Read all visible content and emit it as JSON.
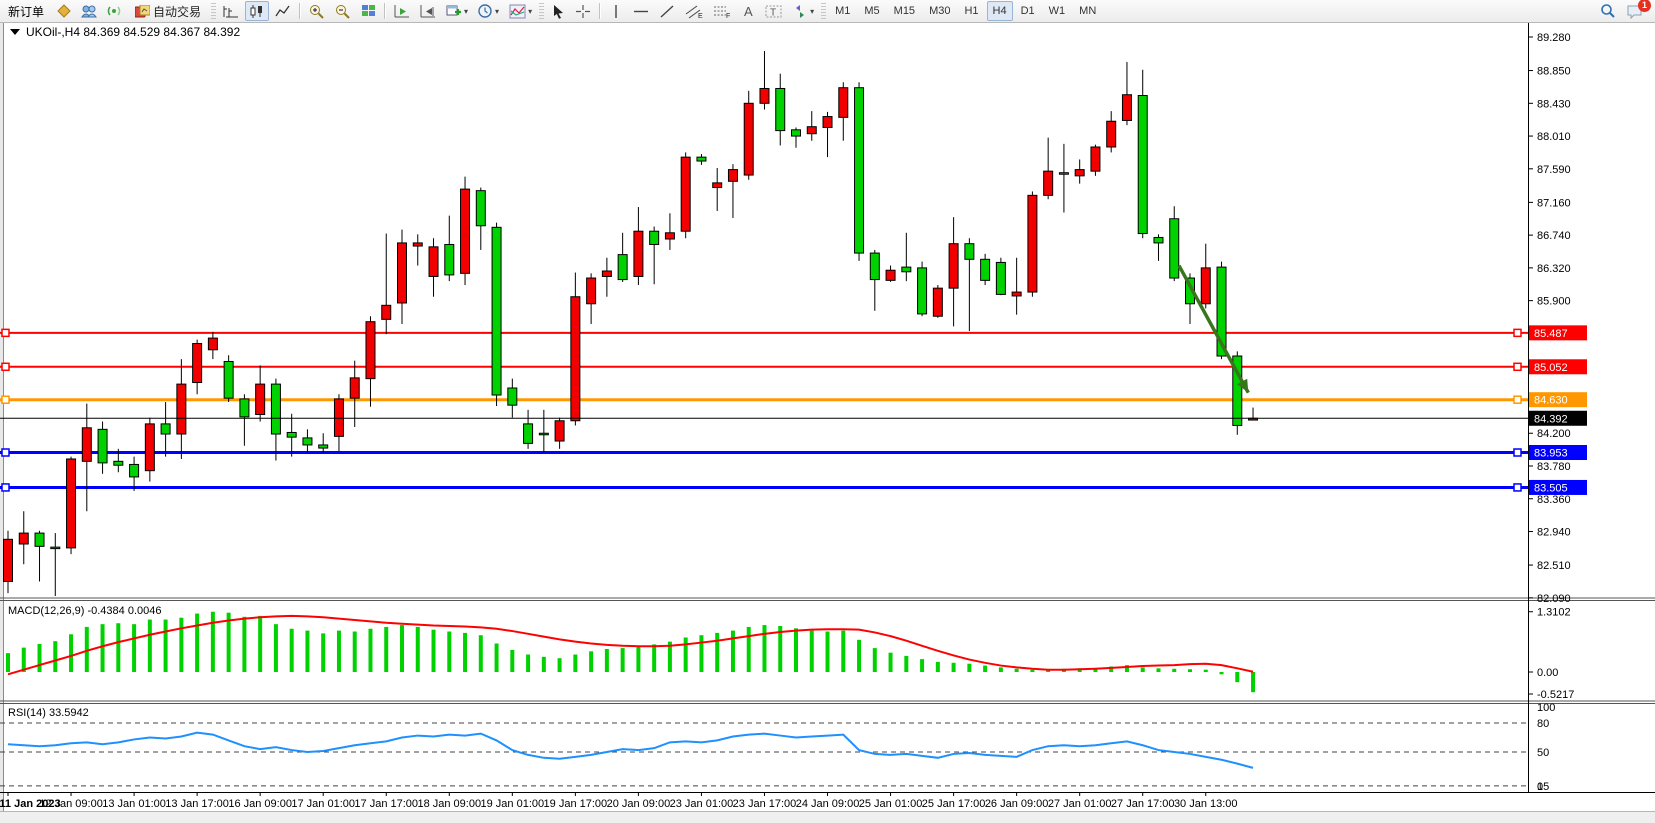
{
  "toolbar": {
    "new_order_label": "新订单",
    "autotrade_label": "自动交易",
    "timeframes": [
      "M1",
      "M5",
      "M15",
      "M30",
      "H1",
      "H4",
      "D1",
      "W1",
      "MN"
    ],
    "active_timeframe": "H4",
    "notification_count": "1",
    "icons": [
      "gold-coin-icon",
      "community-icon",
      "signals-icon",
      "autotrade-icon",
      "bar-chart-icon",
      "candle-chart-icon",
      "line-chart-icon",
      "zoom-in-icon",
      "zoom-out-icon",
      "tile-windows-icon",
      "auto-scroll-icon",
      "chart-shift-icon",
      "new-chart-icon",
      "period-icon",
      "indicators-icon",
      "cursor-icon",
      "crosshair-icon",
      "vertical-line-icon",
      "horizontal-line-icon",
      "trendline-icon",
      "channel-icon",
      "fibonacci-icon",
      "text-icon",
      "label-icon",
      "shapes-icon",
      "search-icon",
      "chat-icon"
    ]
  },
  "chart_data": {
    "type": "candlestick+indicators",
    "title_symbol": "UKOil-,H4",
    "title_ohlc": "84.369 84.529 84.367 84.392",
    "colors": {
      "up": "#f20000",
      "down": "#00d200",
      "macd_hist": "#00d200",
      "macd_signal": "#ff0000",
      "rsi_line": "#1e90ff",
      "line_red": "#ff0000",
      "line_orange": "#ff9800",
      "line_blue": "#0000ff",
      "line_black": "#000000"
    },
    "price_axis_ticks": [
      89.28,
      88.85,
      88.43,
      88.01,
      87.59,
      87.16,
      86.74,
      86.32,
      85.9,
      84.2,
      83.78,
      83.36,
      82.94,
      82.51,
      82.09
    ],
    "y_range": {
      "max": 89.28,
      "min": 82.09
    },
    "hlines": [
      {
        "price": 85.487,
        "color": "#ff0000",
        "width": 2
      },
      {
        "price": 85.052,
        "color": "#ff0000",
        "width": 2
      },
      {
        "price": 84.63,
        "color": "#ff9800",
        "width": 3
      },
      {
        "price": 83.953,
        "color": "#0000ff",
        "width": 3
      },
      {
        "price": 83.505,
        "color": "#0000ff",
        "width": 3
      }
    ],
    "current_price": 84.392,
    "time_labels": [
      "11 Jan 2023",
      "12 Jan 09:00",
      "13 Jan 01:00",
      "13 Jan 17:00",
      "16 Jan 09:00",
      "17 Jan 01:00",
      "17 Jan 17:00",
      "18 Jan 09:00",
      "19 Jan 01:00",
      "19 Jan 17:00",
      "20 Jan 09:00",
      "23 Jan 01:00",
      "23 Jan 17:00",
      "24 Jan 09:00",
      "25 Jan 01:00",
      "25 Jan 17:00",
      "26 Jan 09:00",
      "27 Jan 01:00",
      "27 Jan 17:00",
      "30 Jan 13:00"
    ],
    "time_label_every_n_bars": 4,
    "candles": [
      [
        82.3,
        82.95,
        82.15,
        82.84
      ],
      [
        82.78,
        83.2,
        82.52,
        82.92
      ],
      [
        82.92,
        82.95,
        82.3,
        82.75
      ],
      [
        82.74,
        82.92,
        82.1,
        82.73
      ],
      [
        82.73,
        83.9,
        82.65,
        83.87
      ],
      [
        83.84,
        84.58,
        83.2,
        84.27
      ],
      [
        84.25,
        84.35,
        83.68,
        83.82
      ],
      [
        83.84,
        84.0,
        83.7,
        83.79
      ],
      [
        83.8,
        83.9,
        83.46,
        83.64
      ],
      [
        83.72,
        84.4,
        83.58,
        84.32
      ],
      [
        84.32,
        84.6,
        83.9,
        84.19
      ],
      [
        84.19,
        85.15,
        83.87,
        84.83
      ],
      [
        84.85,
        85.4,
        84.7,
        85.35
      ],
      [
        85.27,
        85.5,
        85.15,
        85.42
      ],
      [
        85.12,
        85.2,
        84.6,
        84.65
      ],
      [
        84.64,
        84.7,
        84.04,
        84.41
      ],
      [
        84.44,
        85.07,
        84.35,
        84.83
      ],
      [
        84.83,
        84.9,
        83.85,
        84.19
      ],
      [
        84.21,
        84.45,
        83.9,
        84.15
      ],
      [
        84.14,
        84.25,
        83.95,
        84.05
      ],
      [
        84.05,
        84.2,
        83.95,
        84.01
      ],
      [
        84.16,
        84.7,
        83.97,
        84.64
      ],
      [
        84.65,
        85.13,
        84.28,
        84.91
      ],
      [
        84.9,
        85.7,
        84.54,
        85.63
      ],
      [
        85.66,
        86.76,
        85.47,
        85.84
      ],
      [
        85.87,
        86.81,
        85.6,
        86.64
      ],
      [
        86.6,
        86.75,
        86.35,
        86.64
      ],
      [
        86.21,
        86.7,
        85.95,
        86.59
      ],
      [
        86.62,
        86.99,
        86.15,
        86.23
      ],
      [
        86.25,
        87.49,
        86.1,
        87.33
      ],
      [
        87.31,
        87.35,
        86.55,
        86.86
      ],
      [
        86.84,
        86.9,
        84.55,
        84.69
      ],
      [
        84.78,
        84.9,
        84.4,
        84.56
      ],
      [
        84.32,
        84.5,
        84.0,
        84.07
      ],
      [
        84.2,
        84.5,
        83.95,
        84.18
      ],
      [
        84.1,
        84.4,
        84.0,
        84.36
      ],
      [
        84.36,
        86.26,
        84.3,
        85.95
      ],
      [
        85.86,
        86.25,
        85.6,
        86.19
      ],
      [
        86.21,
        86.45,
        85.95,
        86.28
      ],
      [
        86.49,
        86.77,
        86.14,
        86.17
      ],
      [
        86.21,
        87.1,
        86.1,
        86.79
      ],
      [
        86.79,
        86.85,
        86.11,
        86.62
      ],
      [
        86.69,
        87.02,
        86.55,
        86.77
      ],
      [
        86.79,
        87.8,
        86.7,
        87.74
      ],
      [
        87.74,
        87.78,
        87.64,
        87.69
      ],
      [
        87.35,
        87.6,
        87.05,
        87.41
      ],
      [
        87.43,
        87.65,
        86.96,
        87.58
      ],
      [
        87.51,
        88.59,
        87.45,
        88.43
      ],
      [
        88.43,
        89.1,
        88.35,
        88.62
      ],
      [
        88.62,
        88.81,
        87.89,
        88.08
      ],
      [
        88.09,
        88.12,
        87.86,
        88.01
      ],
      [
        88.04,
        88.33,
        87.95,
        88.13
      ],
      [
        88.12,
        88.32,
        87.74,
        88.26
      ],
      [
        88.25,
        88.7,
        87.95,
        88.63
      ],
      [
        88.63,
        88.7,
        86.41,
        86.51
      ],
      [
        86.51,
        86.55,
        85.77,
        86.17
      ],
      [
        86.16,
        86.35,
        86.14,
        86.29
      ],
      [
        86.33,
        86.77,
        86.15,
        86.27
      ],
      [
        86.32,
        86.4,
        85.7,
        85.73
      ],
      [
        85.7,
        86.1,
        85.68,
        86.06
      ],
      [
        86.06,
        86.97,
        85.57,
        86.63
      ],
      [
        86.63,
        86.7,
        85.51,
        86.43
      ],
      [
        86.43,
        86.5,
        86.1,
        86.16
      ],
      [
        86.39,
        86.45,
        85.97,
        85.98
      ],
      [
        85.96,
        86.45,
        85.72,
        86.01
      ],
      [
        86.01,
        87.3,
        85.95,
        87.25
      ],
      [
        87.25,
        87.99,
        87.2,
        87.56
      ],
      [
        87.54,
        87.91,
        87.03,
        87.53
      ],
      [
        87.5,
        87.71,
        87.4,
        87.58
      ],
      [
        87.56,
        87.9,
        87.5,
        87.87
      ],
      [
        87.87,
        88.33,
        87.8,
        88.2
      ],
      [
        88.21,
        88.96,
        88.15,
        88.54
      ],
      [
        88.53,
        88.86,
        86.7,
        86.76
      ],
      [
        86.71,
        86.75,
        86.41,
        86.64
      ],
      [
        86.95,
        87.11,
        86.15,
        86.19
      ],
      [
        86.19,
        86.25,
        85.6,
        85.86
      ],
      [
        85.86,
        86.63,
        85.8,
        86.32
      ],
      [
        86.33,
        86.4,
        85.15,
        85.19
      ],
      [
        85.19,
        85.25,
        84.18,
        84.3
      ],
      [
        84.369,
        84.529,
        84.367,
        84.392
      ]
    ],
    "macd": {
      "label": "MACD(12,26,9)",
      "current_values": "-0.4384 0.0046",
      "axis_labels": [
        "1.3102",
        "0.00",
        "-0.5217"
      ],
      "histogram": [
        0.41,
        0.53,
        0.61,
        0.67,
        0.82,
        0.98,
        1.04,
        1.06,
        1.04,
        1.14,
        1.14,
        1.18,
        1.27,
        1.31,
        1.29,
        1.2,
        1.22,
        1.04,
        0.94,
        0.9,
        0.84,
        0.9,
        0.88,
        0.94,
        0.98,
        1.02,
        0.98,
        0.92,
        0.88,
        0.85,
        0.8,
        0.62,
        0.48,
        0.38,
        0.33,
        0.3,
        0.38,
        0.45,
        0.5,
        0.52,
        0.55,
        0.6,
        0.66,
        0.75,
        0.8,
        0.85,
        0.9,
        0.98,
        1.02,
        1.0,
        0.95,
        0.9,
        0.88,
        0.9,
        0.7,
        0.52,
        0.42,
        0.35,
        0.28,
        0.22,
        0.2,
        0.18,
        0.14,
        0.1,
        0.07,
        0.05,
        0.06,
        0.07,
        0.08,
        0.09,
        0.12,
        0.15,
        0.1,
        0.08,
        0.07,
        0.06,
        0.05,
        -0.05,
        -0.22,
        -0.4384
      ],
      "signal": [
        -0.05,
        0.05,
        0.15,
        0.25,
        0.35,
        0.46,
        0.56,
        0.65,
        0.73,
        0.81,
        0.88,
        0.95,
        1.01,
        1.07,
        1.12,
        1.16,
        1.19,
        1.21,
        1.22,
        1.21,
        1.19,
        1.16,
        1.13,
        1.1,
        1.07,
        1.05,
        1.03,
        1.01,
        1.0,
        0.99,
        0.97,
        0.94,
        0.89,
        0.83,
        0.77,
        0.71,
        0.66,
        0.62,
        0.59,
        0.57,
        0.56,
        0.56,
        0.57,
        0.6,
        0.64,
        0.68,
        0.73,
        0.78,
        0.83,
        0.87,
        0.9,
        0.92,
        0.93,
        0.93,
        0.92,
        0.86,
        0.78,
        0.68,
        0.57,
        0.46,
        0.36,
        0.27,
        0.2,
        0.14,
        0.1,
        0.07,
        0.05,
        0.05,
        0.06,
        0.07,
        0.09,
        0.11,
        0.13,
        0.14,
        0.15,
        0.17,
        0.18,
        0.15,
        0.08,
        0.0046
      ]
    },
    "rsi": {
      "label": "RSI(14)",
      "current_value": "33.5942",
      "axis_labels": [
        "100",
        "80",
        "50",
        "15",
        "0"
      ],
      "levels": [
        80,
        50,
        15
      ],
      "values": [
        58,
        57,
        56,
        57,
        59,
        60,
        58,
        60,
        63,
        65,
        64,
        66,
        70,
        68,
        62,
        56,
        53,
        55,
        52,
        50,
        51,
        54,
        57,
        59,
        61,
        65,
        67,
        66,
        68,
        67,
        69,
        62,
        52,
        47,
        44,
        43,
        45,
        47,
        50,
        53,
        52,
        54,
        60,
        61,
        60,
        62,
        66,
        68,
        69,
        67,
        65,
        66,
        67,
        68,
        52,
        48,
        47,
        48,
        46,
        44,
        48,
        49,
        47,
        46,
        45,
        52,
        56,
        57,
        56,
        57,
        59,
        61,
        57,
        52,
        50,
        48,
        45,
        42,
        38,
        33.59
      ]
    },
    "arrow": {
      "x1_bar": 74.3,
      "y1_price": 86.35,
      "x2_bar": 78.7,
      "y2_price": 84.72,
      "color": "#38761d"
    }
  }
}
